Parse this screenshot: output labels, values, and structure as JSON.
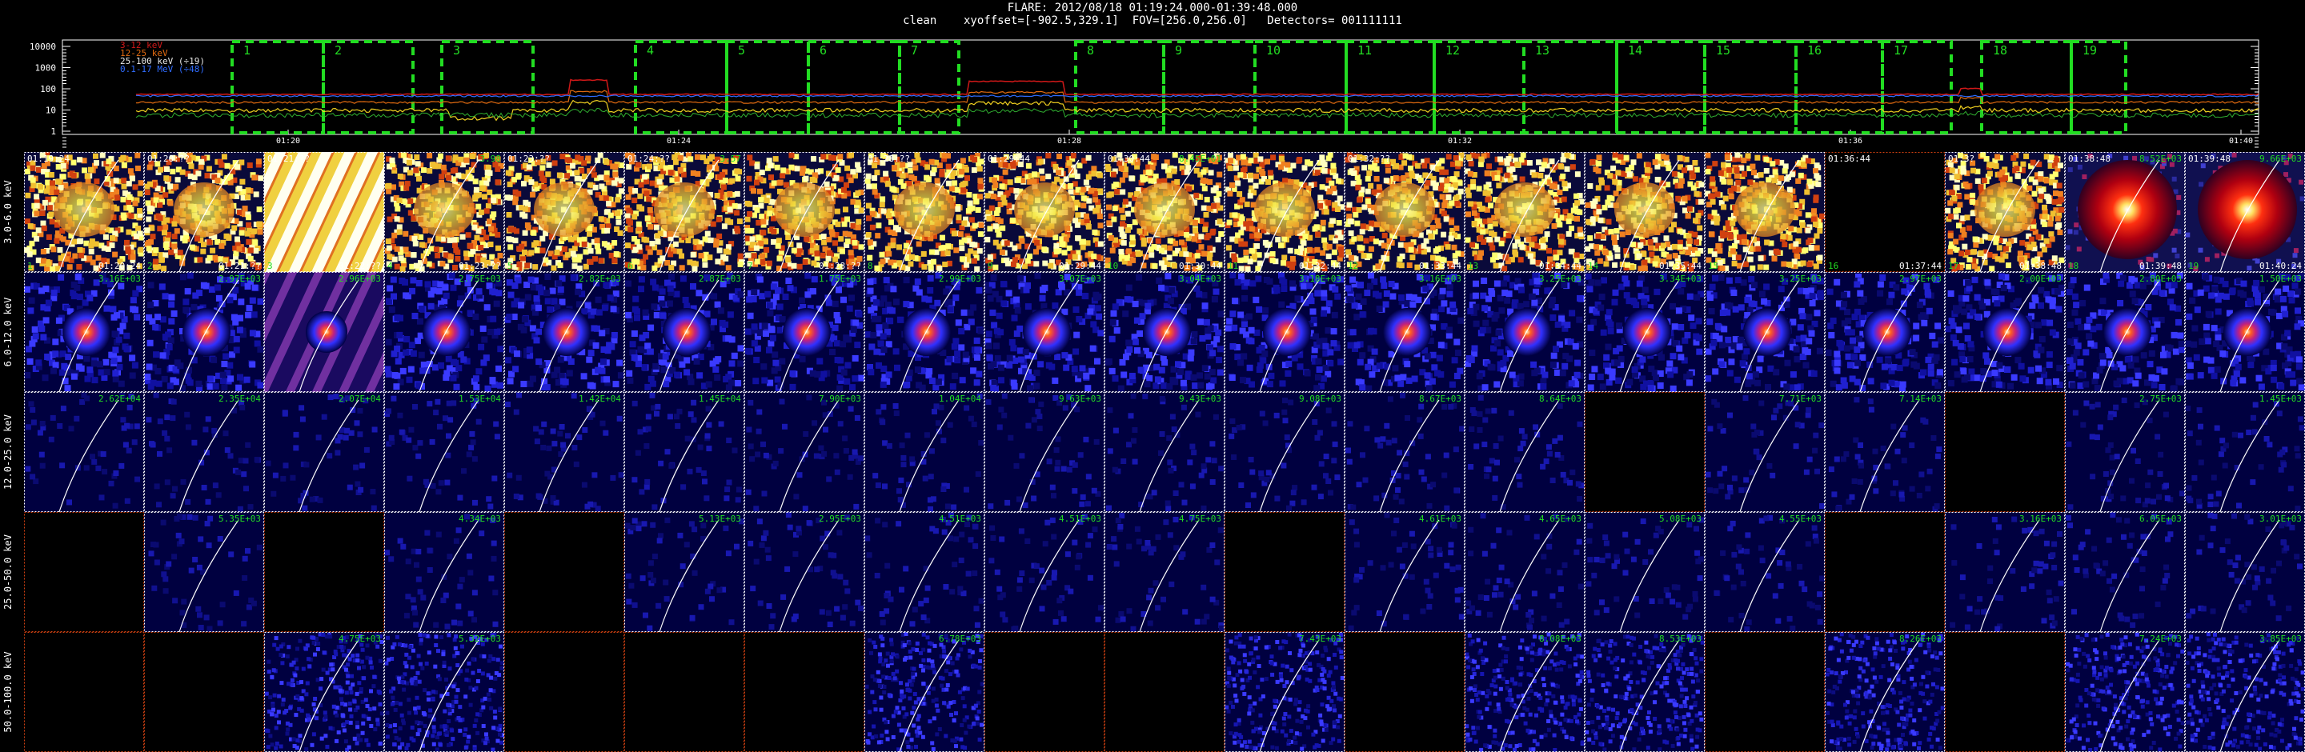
{
  "header": {
    "line1": "FLARE: 2012/08/18 01:19:24.000-01:39:48.000",
    "line2": "clean    xyoffset=[-902.5,329.1]  FOV=[256.0,256.0]   Detectors= 001111111"
  },
  "lightcurve": {
    "y_ticks": [
      "10000",
      "1000",
      "100",
      "10",
      "1"
    ],
    "x_ticks": [
      "01:20",
      "01:24",
      "01:28",
      "01:32",
      "01:36",
      "01:40"
    ],
    "legend": [
      {
        "label": "3-12 keV",
        "color": "#d01818"
      },
      {
        "label": "12-25 keV",
        "color": "#e06a10"
      },
      {
        "label": "25-100 keV (÷19)",
        "color": "#e8e8e8"
      },
      {
        "label": "0.1-17 MeV (÷48)",
        "color": "#2f6cff"
      }
    ],
    "intervals": [
      "1",
      "2",
      "3",
      "4",
      "5",
      "6",
      "7",
      "8",
      "9",
      "10",
      "11",
      "12",
      "13",
      "14",
      "15",
      "16",
      "17",
      "18",
      "19"
    ],
    "colors": {
      "interval_box": "#22dd22",
      "curve_yellow": "#f0d020"
    }
  },
  "energy_bands": [
    "3.0-6.0 keV",
    "6.0-12.0 keV",
    "12.0-25.0 keV",
    "25.0-50.0 keV",
    "50.0-100.0 keV"
  ],
  "row1_top_times": [
    "01:19:24",
    "01:20:??",
    "01:21:??",
    "",
    "01:23:??",
    "01:24:??",
    "",
    "01:28:??",
    "01:29:44",
    "01:30:44",
    "",
    "01:32:??",
    "",
    "",
    "",
    "01:36:44",
    "01:3?",
    "01:38:48",
    "01:39:48"
  ],
  "row1_bottom_times": [
    "01:20:24",
    "01:21:??",
    "01:22:??",
    "01:23:??",
    "",
    "",
    "01:28:??",
    "",
    "01:29:44",
    "01:30:44",
    "01:32:44",
    "01:33:44",
    "01:34:44",
    "01:35:44",
    "",
    "01:37:44",
    "01:38:48",
    "01:39:48",
    "01:40:24"
  ],
  "row1_maxvals": [
    "",
    "",
    "",
    "3.98",
    "",
    "3.57",
    "",
    "",
    "",
    "8.45E+01",
    "",
    "",
    "",
    "",
    "",
    "",
    "",
    "8.52E+03",
    "9.66E+03"
  ],
  "row2_maxvals": [
    "3.16E+03",
    "2.97E+03",
    "2.96E+03",
    "2.75E+03",
    "2.82E+03",
    "2.87E+03",
    "1.75E+03",
    "2.99E+03",
    "3.07E+03",
    "3.04E+03",
    "3.18E+03",
    "3.16E+03",
    "3.25E+03",
    "3.34E+03",
    "3.25E+03",
    "2.97E+03",
    "2.00E+03",
    "2.80E+03",
    "1.50E+03"
  ],
  "row3_maxvals": [
    "2.62E+04",
    "2.35E+04",
    "2.07E+04",
    "1.53E+04",
    "1.42E+04",
    "1.45E+04",
    "7.90E+03",
    "1.04E+04",
    "9.63E+03",
    "9.43E+03",
    "9.08E+03",
    "8.67E+03",
    "8.64E+03",
    "",
    "7.71E+03",
    "7.14E+03",
    "",
    "2.75E+03",
    "1.45E+03"
  ],
  "row4_maxvals": [
    "",
    "5.35E+03",
    "",
    "4.34E+03",
    "",
    "5.13E+03",
    "2.95E+03",
    "4.51E+03",
    "4.51E+03",
    "4.75E+03",
    "",
    "4.61E+03",
    "4.65E+03",
    "5.08E+03",
    "4.55E+03",
    "",
    "3.16E+03",
    "6.05E+03",
    "3.01E+03"
  ],
  "row5_maxvals": [
    "",
    "",
    "4.75E+03",
    "5.32E+03",
    "",
    "",
    "",
    "6.78E+03",
    "",
    "",
    "7.43E+03",
    "",
    "8.08E+03",
    "8.53E+03",
    "",
    "8.26E+03",
    "",
    "7.24E+03",
    "3.85E+03"
  ],
  "row1_bottom_labels": [
    "1",
    "2",
    "3",
    "4",
    "5",
    "6",
    "7",
    "8",
    "9",
    "10",
    "11",
    "12",
    "13",
    "14",
    "15",
    "16",
    "17",
    "18",
    "19"
  ],
  "row1_types": [
    "y",
    "y",
    "s",
    "y",
    "y",
    "y",
    "y",
    "y",
    "y",
    "y",
    "y",
    "y",
    "y",
    "y",
    "y",
    "b",
    "y",
    "r",
    "r"
  ],
  "row2_types": [
    "p",
    "p",
    "v",
    "p",
    "p",
    "p",
    "p",
    "p",
    "p",
    "p",
    "p",
    "p",
    "p",
    "p",
    "p",
    "p",
    "p",
    "p",
    "p"
  ],
  "row3_types": [
    "d",
    "d",
    "d",
    "d",
    "d",
    "d",
    "d",
    "d",
    "d",
    "d",
    "d",
    "d",
    "d",
    "k",
    "d",
    "d",
    "k",
    "d",
    "d"
  ],
  "row4_types": [
    "k",
    "d",
    "k",
    "d",
    "k",
    "d",
    "d",
    "d",
    "d",
    "d",
    "k",
    "d",
    "d",
    "d",
    "d",
    "k",
    "d",
    "d",
    "d"
  ],
  "row5_types": [
    "k",
    "k",
    "n",
    "n",
    "k",
    "k",
    "k",
    "n",
    "k",
    "k",
    "n",
    "k",
    "n",
    "n",
    "k",
    "n",
    "k",
    "n",
    "n"
  ]
}
